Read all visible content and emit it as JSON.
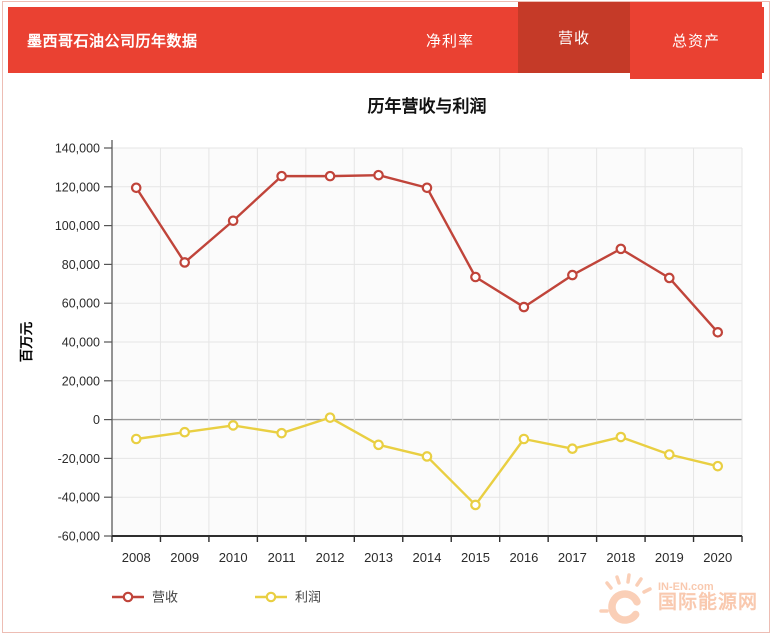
{
  "theme": {
    "header_bg": "#ea4132",
    "header_active_bg": "#c53a28",
    "grid_color": "#e6e6e6",
    "zero_line_color": "#9b9b9b",
    "axis_color": "#2e2e2e",
    "revenue_color": "#c0443a",
    "profit_color": "#e9cf42",
    "watermark_color": "#f3945f"
  },
  "header": {
    "title": "墨西哥石油公司历年数据",
    "tabs": [
      {
        "label": "净利率",
        "active": false
      },
      {
        "label": "营收",
        "active": true
      },
      {
        "label": "总资产",
        "active": false
      }
    ]
  },
  "chart_data": {
    "type": "line",
    "title": "历年营收与利润",
    "xlabel": "",
    "ylabel": "百万元",
    "categories": [
      "2008",
      "2009",
      "2010",
      "2011",
      "2012",
      "2013",
      "2014",
      "2015",
      "2016",
      "2017",
      "2018",
      "2019",
      "2020"
    ],
    "series": [
      {
        "name": "营收",
        "color": "#c0443a",
        "values": [
          119500,
          81000,
          102500,
          125500,
          125500,
          126000,
          119500,
          73500,
          58000,
          74500,
          88000,
          73000,
          45000
        ]
      },
      {
        "name": "利润",
        "color": "#e9cf42",
        "values": [
          -10000,
          -6500,
          -3000,
          -7000,
          1000,
          -13000,
          -19000,
          -44000,
          -10000,
          -15000,
          -9000,
          -18000,
          -24000
        ]
      }
    ],
    "ylim": [
      -60000,
      140000
    ],
    "yticks": [
      140000,
      120000,
      100000,
      80000,
      60000,
      40000,
      20000,
      0,
      -20000,
      -40000,
      -60000
    ],
    "grid": true,
    "marker": "open-circle",
    "legend_position": "bottom-left"
  },
  "legend": {
    "items": [
      "营收",
      "利润"
    ]
  },
  "watermark": {
    "line1": "IN-EN.com",
    "line2": "国际能源网"
  }
}
